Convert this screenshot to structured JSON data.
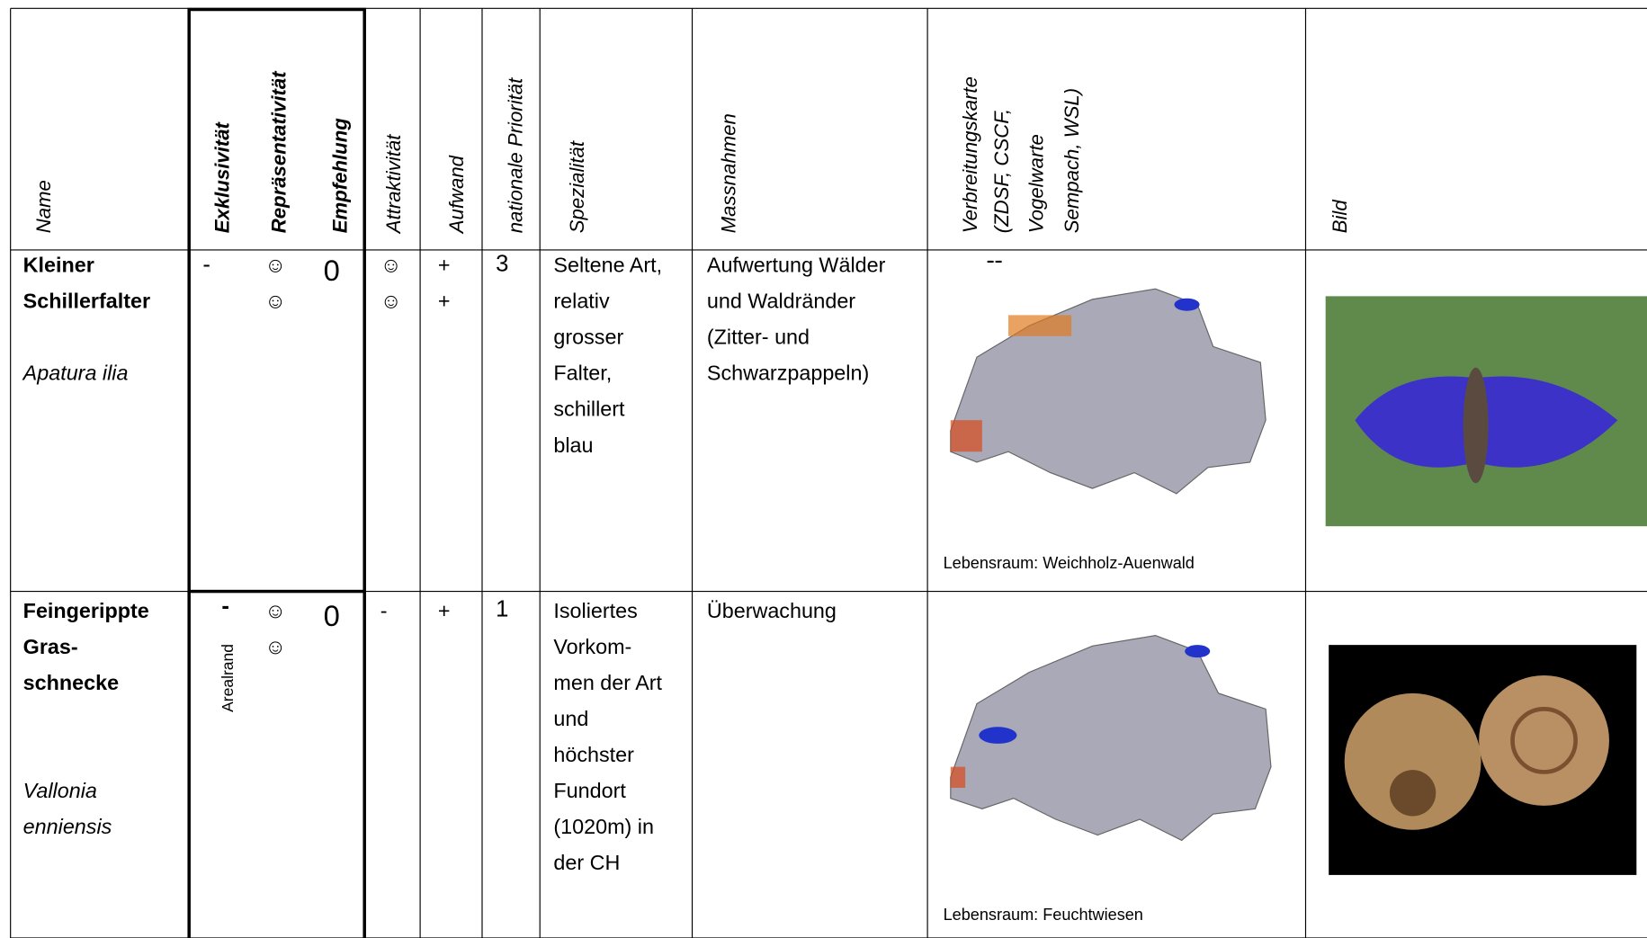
{
  "table": {
    "header": [
      "Name",
      "Exklusivität",
      "Repräsentativität",
      "Empfehlung",
      "Attraktivität",
      "Aufwand",
      "nationale Priorität",
      "Spezialität",
      "Massnahmen",
      [
        "Verbreitungskarte",
        "(ZDSF, CSCF,",
        "Vogelwarte",
        "Sempach, WSL)"
      ],
      "Bild"
    ],
    "rows": [
      {
        "name": [
          "Kleiner",
          "Schillerfalter"
        ],
        "latin": [
          "Apatura ilia"
        ],
        "exklusivitaet": "-",
        "repraesentativitaet": [
          "☺",
          "☺"
        ],
        "empfehlung": "0",
        "attraktivitaet": [
          "☺",
          "☺"
        ],
        "aufwand": [
          "+",
          "+"
        ],
        "prioritaet": "3",
        "spezialitaet": [
          "Seltene Art,",
          "relativ",
          "grosser",
          "Falter,",
          "schillert",
          "blau"
        ],
        "massnahmen": [
          "Aufwertung Wälder",
          "und Waldränder",
          "(Zitter- und",
          "Schwarzpappeln)"
        ],
        "lebensraum": "Lebensraum: Weichholz-Auenwald"
      },
      {
        "name": [
          "Feingerippte",
          "Gras-",
          "schnecke"
        ],
        "latin": [
          "Vallonia",
          "enniensis"
        ],
        "exklusivitaet": "-",
        "arealrand": "Arealrand",
        "repraesentativitaet": [
          "☺",
          "☺"
        ],
        "empfehlung": "0",
        "attraktivitaet": [
          "-"
        ],
        "aufwand": [
          "+"
        ],
        "prioritaet": "1",
        "spezialitaet": [
          "Isoliertes",
          "Vorkom-",
          "men der Art",
          "und",
          "höchster",
          "Fundort",
          "(1020m) in",
          "der CH"
        ],
        "massnahmen": [
          "Überwachung"
        ],
        "lebensraum": "Lebensraum: Feuchtwiesen"
      }
    ]
  }
}
